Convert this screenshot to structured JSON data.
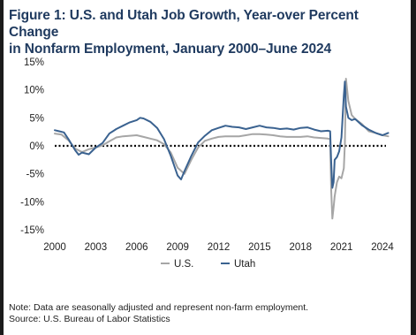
{
  "title_line1": "Figure 1: U.S. and Utah Job Growth, Year-over Percent Change",
  "title_line2": "in Nonfarm Employment, January 2000–June 2024",
  "note": "Note: Data are seasonally adjusted and represent non-farm employment.",
  "source": "Source: U.S. Bureau of Labor Statistics",
  "chart_data": {
    "type": "line",
    "ylim": [
      -15,
      15
    ],
    "xlim": [
      2000,
      2024
    ],
    "y_ticks": [
      15,
      10,
      5,
      0,
      -5,
      -10,
      -15
    ],
    "y_tick_labels": [
      "15%",
      "10%",
      "5%",
      "0%",
      "-5%",
      "-10%",
      "-15%"
    ],
    "x_ticks": [
      2000,
      2003,
      2006,
      2009,
      2012,
      2015,
      2018,
      2021,
      2024
    ],
    "x_tick_labels": [
      "2000",
      "2003",
      "2006",
      "2009",
      "2012",
      "2015",
      "2018",
      "2021",
      "2024"
    ],
    "zero_line": "dotted",
    "legend_position": "bottom-center",
    "series": [
      {
        "name": "U.S.",
        "color": "#a6a6a6",
        "x": [
          2000,
          2000.5,
          2001,
          2001.5,
          2002,
          2002.5,
          2003,
          2003.5,
          2004,
          2004.5,
          2005,
          2005.5,
          2006,
          2006.5,
          2007,
          2007.5,
          2008,
          2008.5,
          2009,
          2009.5,
          2010,
          2010.5,
          2011,
          2011.5,
          2012,
          2012.5,
          2013,
          2013.5,
          2014,
          2014.5,
          2015,
          2015.5,
          2016,
          2016.5,
          2017,
          2017.5,
          2018,
          2018.5,
          2019,
          2019.5,
          2020,
          2020.17,
          2020.25,
          2020.33,
          2020.42,
          2020.5,
          2020.67,
          2020.83,
          2021,
          2021.17,
          2021.25,
          2021.33,
          2021.5,
          2021.75,
          2022,
          2022.5,
          2023,
          2023.5,
          2024,
          2024.42
        ],
        "values": [
          2.2,
          2.0,
          1.0,
          -0.5,
          -1.1,
          -0.6,
          -0.3,
          0.1,
          0.8,
          1.5,
          1.7,
          1.8,
          1.9,
          1.6,
          1.3,
          1.0,
          0.3,
          -1.2,
          -3.9,
          -5.0,
          -2.5,
          -0.3,
          0.9,
          1.3,
          1.6,
          1.7,
          1.7,
          1.7,
          1.9,
          2.1,
          2.1,
          2.0,
          1.9,
          1.7,
          1.6,
          1.6,
          1.6,
          1.7,
          1.5,
          1.4,
          1.3,
          1.2,
          -8.0,
          -13.0,
          -11.0,
          -9.0,
          -6.5,
          -5.5,
          -5.8,
          -4.0,
          0.5,
          12.0,
          8.0,
          5.5,
          4.8,
          3.9,
          2.6,
          2.3,
          1.9,
          1.7
        ]
      },
      {
        "name": "Utah",
        "color": "#3a6290",
        "x": [
          2000,
          2000.33,
          2000.67,
          2001,
          2001.5,
          2001.75,
          2002,
          2002.5,
          2003,
          2003.5,
          2004,
          2004.5,
          2005,
          2005.5,
          2006,
          2006.25,
          2006.5,
          2007,
          2007.5,
          2008,
          2008.5,
          2009,
          2009.25,
          2009.5,
          2010,
          2010.5,
          2011,
          2011.5,
          2012,
          2012.5,
          2013,
          2013.5,
          2014,
          2014.5,
          2015,
          2015.5,
          2016,
          2016.5,
          2017,
          2017.5,
          2018,
          2018.5,
          2019,
          2019.5,
          2020,
          2020.17,
          2020.25,
          2020.33,
          2020.42,
          2020.5,
          2020.67,
          2020.83,
          2021,
          2021.17,
          2021.25,
          2021.33,
          2021.5,
          2021.75,
          2022,
          2022.5,
          2023,
          2023.5,
          2024,
          2024.42
        ],
        "values": [
          2.8,
          2.6,
          2.4,
          1.2,
          -0.8,
          -1.6,
          -1.2,
          -1.5,
          -0.3,
          0.5,
          2.2,
          3.0,
          3.6,
          4.2,
          4.6,
          5.0,
          4.9,
          4.3,
          3.2,
          1.2,
          -1.8,
          -5.3,
          -6.0,
          -4.5,
          -1.8,
          0.6,
          1.8,
          2.8,
          3.2,
          3.6,
          3.4,
          3.3,
          3.0,
          3.3,
          3.6,
          3.3,
          3.2,
          3.0,
          3.1,
          2.9,
          3.2,
          3.3,
          2.9,
          2.6,
          2.7,
          2.6,
          -3.0,
          -7.5,
          -6.5,
          -2.5,
          -2.0,
          -1.0,
          1.5,
          9.0,
          11.5,
          7.0,
          5.0,
          4.6,
          4.8,
          3.7,
          2.9,
          2.3,
          1.9,
          2.3
        ]
      }
    ]
  }
}
